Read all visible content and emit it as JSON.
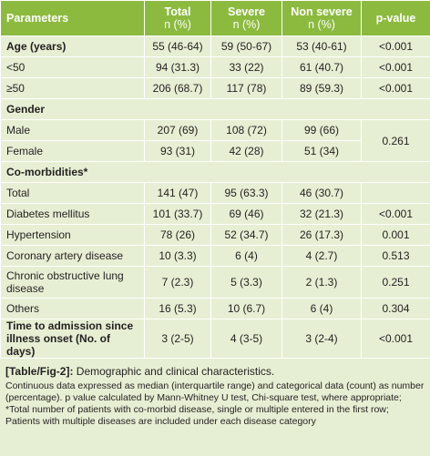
{
  "table": {
    "headers": [
      {
        "title": "Parameters",
        "sub": ""
      },
      {
        "title": "Total",
        "sub": "n (%)"
      },
      {
        "title": "Severe",
        "sub": "n (%)"
      },
      {
        "title": "Non severe",
        "sub": "n (%)"
      },
      {
        "title": "p-value",
        "sub": ""
      }
    ],
    "rows": {
      "age": [
        "Age (years)",
        "55 (46-64)",
        "59 (50-67)",
        "53 (40-61)",
        "<0.001"
      ],
      "lt50": [
        "<50",
        "94 (31.3)",
        "33 (22)",
        "61 (40.7)",
        "<0.001"
      ],
      "ge50": [
        "≥50",
        "206 (68.7)",
        "117 (78)",
        "89 (59.3)",
        "<0.001"
      ],
      "gender": [
        "Gender"
      ],
      "male": [
        "Male",
        "207 (69)",
        "108 (72)",
        "99 (66)",
        "0.261"
      ],
      "female": [
        "Female",
        "93 (31)",
        "42 (28)",
        "51 (34)"
      ],
      "comorb": [
        "Co-morbidities*"
      ],
      "total": [
        "Total",
        "141 (47)",
        "95 (63.3)",
        "46 (30.7)"
      ],
      "diabetes": [
        "Diabetes mellitus",
        "101 (33.7)",
        "69 (46)",
        "32 (21.3)",
        "<0.001"
      ],
      "htn": [
        "Hypertension",
        "78 (26)",
        "52 (34.7)",
        "26 (17.3)",
        "0.001"
      ],
      "cad": [
        "Coronary artery disease",
        "10 (3.3)",
        "6 (4)",
        "4 (2.7)",
        "0.513"
      ],
      "copd": [
        "Chronic obstructive lung disease",
        "7 (2.3)",
        "5 (3.3)",
        "2 (1.3)",
        "0.251"
      ],
      "others": [
        "Others",
        "16 (5.3)",
        "10 (6.7)",
        "6 (4)",
        "0.304"
      ],
      "admission": [
        "Time to admission since illness onset (No. of days)",
        "3 (2-5)",
        "4 (3-5)",
        "3 (2-4)",
        "<0.001"
      ]
    }
  },
  "caption": {
    "ref": "[Table/Fig-2]:",
    "title": "Demographic and clinical characteristics."
  },
  "notes": [
    "Continuous data expressed as median (interquartile range) and categorical data (count) as number (percentage). p value calculated by Mann-Whitney U test, Chi-square test, where appropriate;",
    "*Total number of patients with co-morbid disease, single or multiple entered in the first row; Patients with multiple diseases are included under each disease category"
  ],
  "colors": {
    "header_bg": "#8cba3f",
    "body_bg": "#e6efd3",
    "grid": "#ffffff"
  }
}
